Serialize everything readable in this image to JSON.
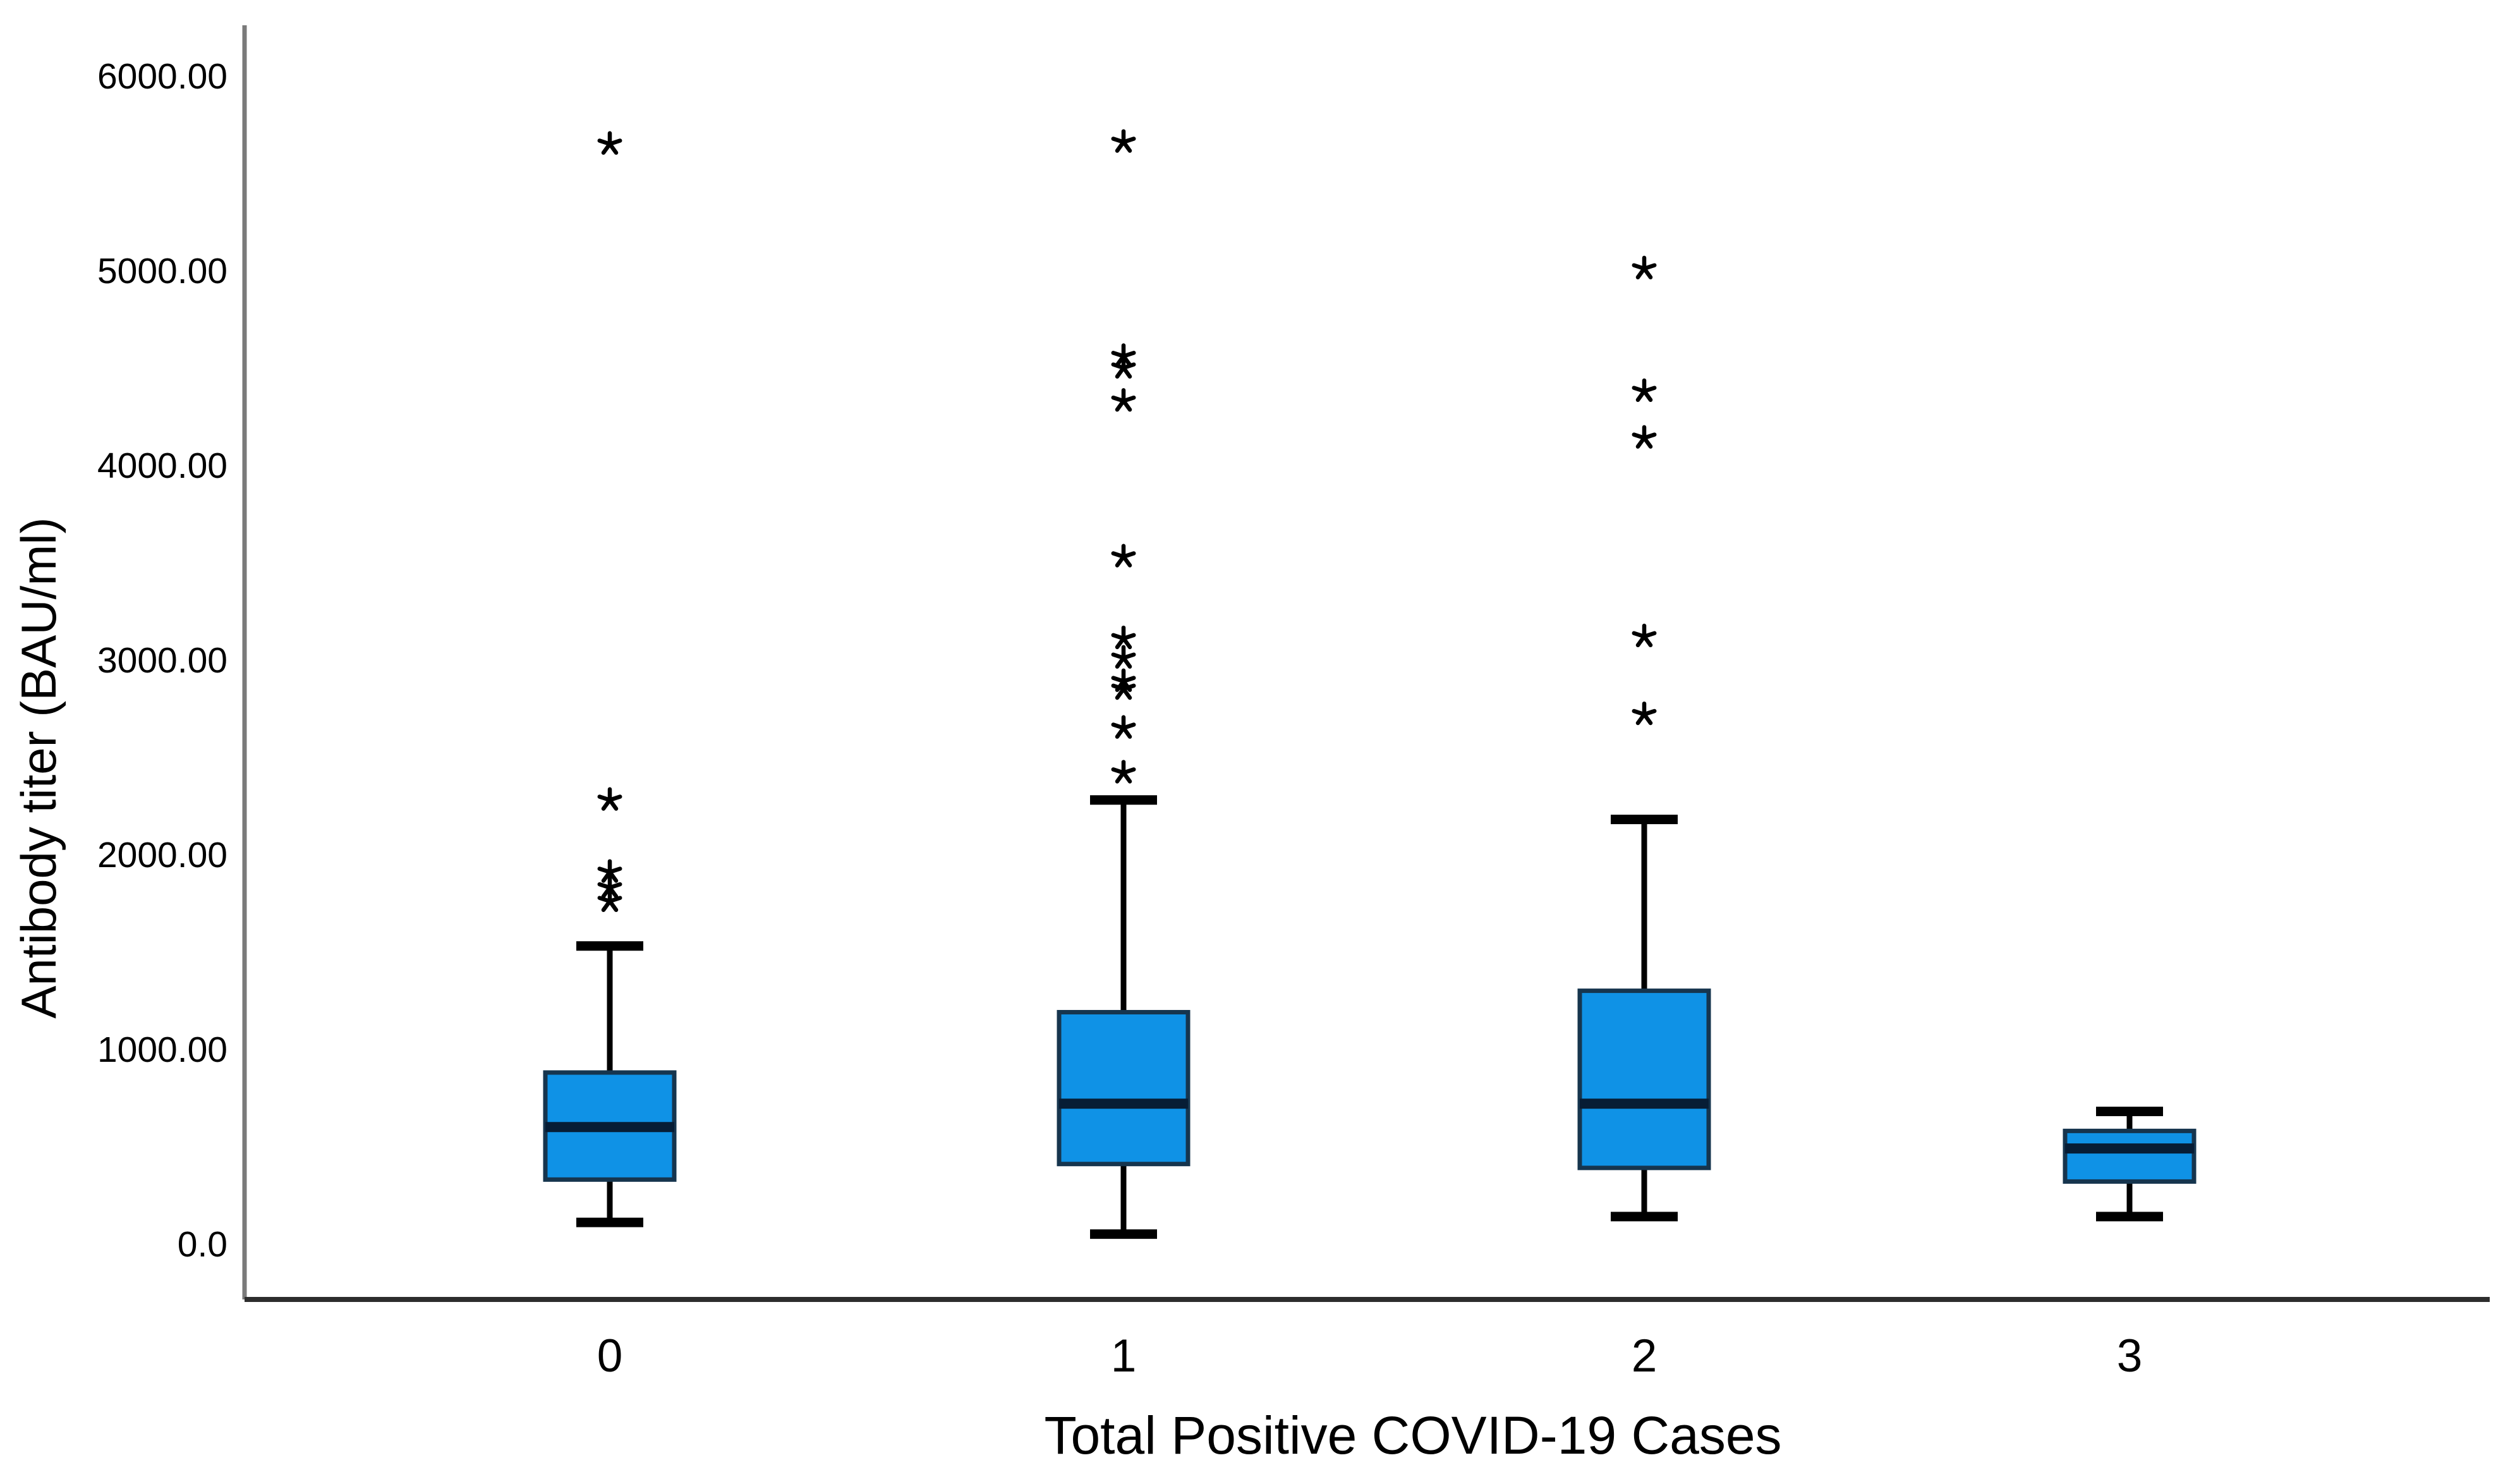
{
  "chart_data": {
    "type": "boxplot",
    "title": "",
    "xlabel": "Total Positive COVID-19 Cases",
    "ylabel": "Antibody titer (BAU/ml)",
    "categories": [
      "0",
      "1",
      "2",
      "3"
    ],
    "y_ticks": [
      {
        "value": 0,
        "label": "0.0"
      },
      {
        "value": 1000,
        "label": "1000.00"
      },
      {
        "value": 2000,
        "label": "2000.00"
      },
      {
        "value": 3000,
        "label": "3000.00"
      },
      {
        "value": 4000,
        "label": "4000.00"
      },
      {
        "value": 5000,
        "label": "5000.00"
      },
      {
        "value": 6000,
        "label": "6000.00"
      }
    ],
    "ylim": [
      -290,
      6260
    ],
    "grid": false,
    "legend": "none",
    "marker": "star-asterisk",
    "boxes": [
      {
        "category": "0",
        "whisker_low": 110,
        "q1": 330,
        "median": 600,
        "q3": 880,
        "whisker_high": 1530,
        "outliers": [
          1760,
          1830,
          1910,
          2280,
          5650
        ]
      },
      {
        "category": "1",
        "whisker_low": 50,
        "q1": 410,
        "median": 720,
        "q3": 1190,
        "whisker_high": 2280,
        "outliers": [
          2420,
          2650,
          2850,
          2890,
          3010,
          3110,
          3530,
          4330,
          4500,
          4560,
          5660
        ]
      },
      {
        "category": "2",
        "whisker_low": 140,
        "q1": 390,
        "median": 720,
        "q3": 1300,
        "whisker_high": 2180,
        "outliers": [
          2720,
          3120,
          4140,
          4380,
          5010
        ]
      },
      {
        "category": "3",
        "whisker_low": 140,
        "q1": 320,
        "median": 490,
        "q3": 580,
        "whisker_high": 680,
        "outliers": []
      }
    ],
    "colors": {
      "box_fill": "#0f92e6",
      "box_border": "#16354e",
      "median_line": "#071d35",
      "whisker": "#000000",
      "outlier_marker": "#000000",
      "y_axis_line": "#7a7a7a",
      "x_axis_line": "#2d2d2d",
      "text": "#000000",
      "background": "#ffffff"
    }
  }
}
